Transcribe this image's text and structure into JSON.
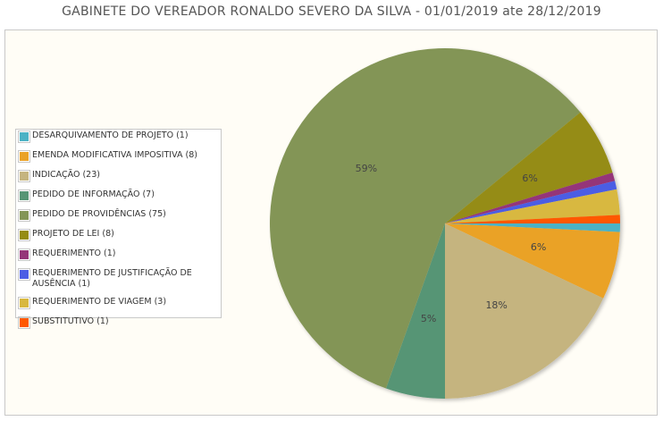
{
  "title": "GABINETE DO VEREADOR RONALDO SEVERO DA SILVA - 01/01/2019 ate 28/12/2019",
  "chart_data": {
    "type": "pie",
    "title": "GABINETE DO VEREADOR RONALDO SEVERO DA SILVA - 01/01/2019 ate 28/12/2019",
    "slices": [
      {
        "label": "DESARQUIVAMENTO DE PROJETO (1)",
        "name": "DESARQUIVAMENTO DE PROJETO",
        "value": 1,
        "color": "#4bb2c5",
        "pct_label": ""
      },
      {
        "label": "EMENDA MODIFICATIVA IMPOSITIVA (8)",
        "name": "EMENDA MODIFICATIVA IMPOSITIVA",
        "value": 8,
        "color": "#eaa228",
        "pct_label": "6%"
      },
      {
        "label": "INDICAÇÃO (23)",
        "name": "INDICAÇÃO",
        "value": 23,
        "color": "#c5b47f",
        "pct_label": "18%"
      },
      {
        "label": "PEDIDO DE INFORMAÇÃO (7)",
        "name": "PEDIDO DE INFORMAÇÃO",
        "value": 7,
        "color": "#579575",
        "pct_label": "5%"
      },
      {
        "label": "PEDIDO DE PROVIDÊNCIAS (75)",
        "name": "PEDIDO DE PROVIDÊNCIAS",
        "value": 75,
        "color": "#839557",
        "pct_label": "59%"
      },
      {
        "label": "PROJETO DE LEI (8)",
        "name": "PROJETO DE LEI",
        "value": 8,
        "color": "#958c12",
        "pct_label": "6%"
      },
      {
        "label": "REQUERIMENTO (1)",
        "name": "REQUERIMENTO",
        "value": 1,
        "color": "#953579",
        "pct_label": ""
      },
      {
        "label": "REQUERIMENTO DE JUSTIFICAÇÃO DE AUSÊNCIA (1)",
        "name": "REQUERIMENTO DE JUSTIFICAÇÃO DE AUSÊNCIA",
        "value": 1,
        "color": "#4b5de4",
        "pct_label": ""
      },
      {
        "label": "REQUERIMENTO DE VIAGEM (3)",
        "name": "REQUERIMENTO DE VIAGEM",
        "value": 3,
        "color": "#d8b83f",
        "pct_label": ""
      },
      {
        "label": "SUBSTITUTIVO (1)",
        "name": "SUBSTITUTIVO",
        "value": 1,
        "color": "#ff5800",
        "pct_label": ""
      }
    ],
    "legend_position": "left",
    "start_angle_deg": 0,
    "direction": "clockwise"
  }
}
